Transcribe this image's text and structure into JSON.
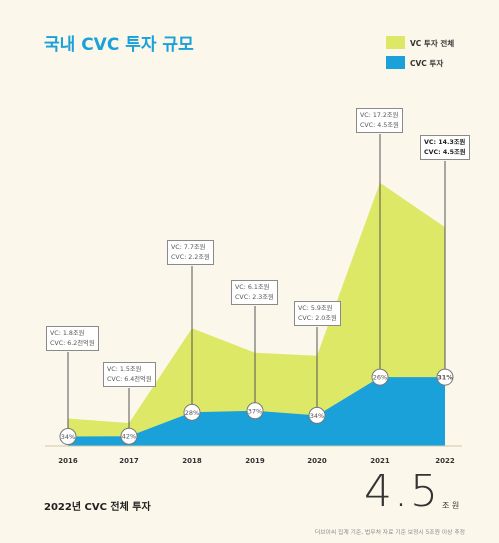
{
  "title": "국내 CVC 투자 규모",
  "legend": [
    {
      "label": "VC 투자 전체",
      "color": "#dde866"
    },
    {
      "label": "CVC 투자",
      "color": "#1aa1d9"
    }
  ],
  "chart_data": {
    "type": "area",
    "title": "국내 CVC 투자 규모",
    "categories": [
      "2016",
      "2017",
      "2018",
      "2019",
      "2020",
      "2021",
      "2022"
    ],
    "series": [
      {
        "name": "VC 투자 전체",
        "values": [
          1.8,
          1.5,
          7.7,
          6.1,
          5.9,
          17.2,
          14.3
        ],
        "color": "#dde866"
      },
      {
        "name": "CVC 투자",
        "values": [
          0.62,
          0.64,
          2.2,
          2.3,
          2.0,
          4.5,
          4.5
        ],
        "color": "#1aa1d9"
      }
    ],
    "share_labels": [
      "34%",
      "42%",
      "28%",
      "37%",
      "34%",
      "26%",
      "31%"
    ],
    "callouts": [
      {
        "vc": "VC: 1.8조원",
        "cvc": "CVC: 6.2천억원"
      },
      {
        "vc": "VC: 1.5조원",
        "cvc": "CVC: 6.4천억원"
      },
      {
        "vc": "VC: 7.7조원",
        "cvc": "CVC: 2.2조원"
      },
      {
        "vc": "VC: 6.1조원",
        "cvc": "CVC: 2.3조원"
      },
      {
        "vc": "VC: 5.9조원",
        "cvc": "CVC: 2.0조원"
      },
      {
        "vc": "VC: 17.2조원",
        "cvc": "CVC: 4.5조원"
      },
      {
        "vc": "VC: 14.3조원",
        "cvc": "CVC: 4.5조원"
      }
    ],
    "ylim": [
      0,
      18
    ],
    "grid": false,
    "legend_position": "top-right"
  },
  "footer": {
    "label": "2022년 CVC 전체 투자",
    "value": "4.5",
    "unit": "조 원",
    "source": "더브이씨 집계 기준, 법무처 자료 기준 보정시 5조원 이상 추정"
  }
}
